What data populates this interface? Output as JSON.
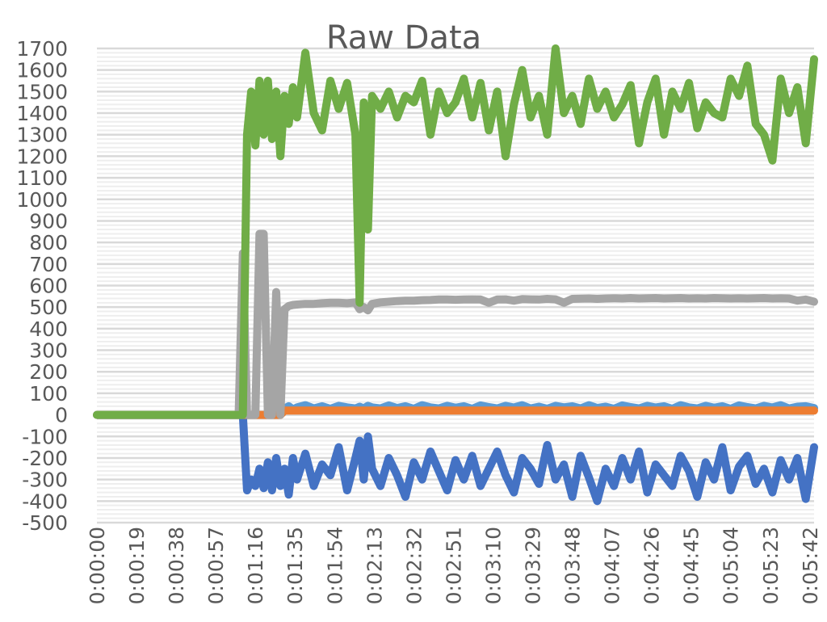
{
  "chart_data": {
    "type": "line",
    "title": "Raw Data",
    "xlabel": "",
    "ylabel": "",
    "ylim": [
      -500,
      1700
    ],
    "y_ticks": [
      "1700",
      "1600",
      "1500",
      "1400",
      "1300",
      "1200",
      "1100",
      "1000",
      "900",
      "800",
      "700",
      "600",
      "500",
      "400",
      "300",
      "200",
      "100",
      "0",
      "-100",
      "-200",
      "-300",
      "-400",
      "-500"
    ],
    "x_tick_labels": [
      "0:00:00",
      "0:00:19",
      "0:00:38",
      "0:00:57",
      "0:01:16",
      "0:01:35",
      "0:01:54",
      "0:02:13",
      "0:02:32",
      "0:02:51",
      "0:03:10",
      "0:03:29",
      "0:03:48",
      "0:04:07",
      "0:04:26",
      "0:04:45",
      "0:05:04",
      "0:05:23",
      "0:05:42"
    ],
    "x_tick_step_seconds": 19,
    "xlim_seconds": [
      0,
      344
    ],
    "grid": true,
    "legend": "none",
    "x_seconds": [
      0,
      4,
      8,
      12,
      16,
      20,
      24,
      28,
      32,
      36,
      40,
      44,
      48,
      52,
      56,
      60,
      64,
      68,
      70,
      72,
      74,
      76,
      78,
      80,
      82,
      84,
      86,
      88,
      90,
      92,
      94,
      96,
      100,
      104,
      108,
      112,
      116,
      120,
      124,
      126,
      128,
      130,
      132,
      136,
      140,
      144,
      148,
      152,
      156,
      160,
      164,
      168,
      172,
      176,
      180,
      184,
      188,
      192,
      196,
      200,
      204,
      208,
      212,
      216,
      220,
      224,
      228,
      232,
      236,
      240,
      244,
      248,
      252,
      256,
      260,
      264,
      268,
      272,
      276,
      280,
      284,
      288,
      292,
      296,
      300,
      304,
      308,
      312,
      316,
      320,
      324,
      328,
      332,
      336,
      340,
      344
    ],
    "series": [
      {
        "color": "#4472C4",
        "values": [
          0,
          0,
          0,
          0,
          0,
          0,
          0,
          0,
          0,
          0,
          0,
          0,
          0,
          0,
          0,
          0,
          0,
          0,
          0,
          -350,
          -300,
          -330,
          -250,
          -340,
          -220,
          -350,
          -200,
          -330,
          -250,
          -370,
          -200,
          -300,
          -180,
          -330,
          -230,
          -280,
          -150,
          -350,
          -200,
          -120,
          -300,
          -100,
          -250,
          -330,
          -200,
          -280,
          -380,
          -220,
          -300,
          -170,
          -260,
          -350,
          -210,
          -300,
          -190,
          -330,
          -250,
          -170,
          -280,
          -360,
          -200,
          -250,
          -320,
          -140,
          -300,
          -230,
          -380,
          -190,
          -290,
          -400,
          -250,
          -330,
          -200,
          -300,
          -170,
          -360,
          -230,
          -280,
          -330,
          -190,
          -260,
          -380,
          -220,
          -300,
          -150,
          -350,
          -240,
          -190,
          -320,
          -250,
          -360,
          -210,
          -300,
          -200,
          -390,
          -150
        ]
      },
      {
        "color": "#5B9BD5",
        "values": [
          0,
          0,
          0,
          0,
          0,
          0,
          0,
          0,
          0,
          0,
          0,
          0,
          0,
          0,
          0,
          0,
          0,
          0,
          0,
          0,
          0,
          0,
          0,
          0,
          0,
          0,
          0,
          0,
          30,
          40,
          25,
          35,
          45,
          30,
          40,
          28,
          42,
          35,
          30,
          38,
          30,
          42,
          35,
          30,
          44,
          32,
          40,
          28,
          45,
          35,
          30,
          42,
          33,
          40,
          28,
          44,
          36,
          30,
          42,
          34,
          45,
          30,
          38,
          28,
          42,
          35,
          40,
          30,
          45,
          32,
          38,
          28,
          44,
          36,
          30,
          42,
          34,
          40,
          28,
          45,
          35,
          30,
          42,
          33,
          40,
          28,
          44,
          36,
          30,
          42,
          34,
          45,
          30,
          38,
          40,
          32
        ]
      },
      {
        "color": "#ED7D31",
        "values": [
          0,
          0,
          0,
          0,
          0,
          0,
          0,
          0,
          0,
          0,
          0,
          0,
          0,
          0,
          0,
          0,
          0,
          0,
          0,
          0,
          0,
          0,
          0,
          0,
          0,
          0,
          0,
          0,
          20,
          20,
          20,
          20,
          20,
          20,
          20,
          20,
          20,
          20,
          20,
          20,
          20,
          20,
          20,
          20,
          20,
          20,
          20,
          20,
          20,
          20,
          20,
          20,
          20,
          20,
          20,
          20,
          20,
          20,
          20,
          20,
          20,
          20,
          20,
          20,
          20,
          20,
          20,
          20,
          20,
          20,
          20,
          20,
          20,
          20,
          20,
          20,
          20,
          20,
          20,
          20,
          20,
          20,
          20,
          20,
          20,
          20,
          20,
          20,
          20,
          20,
          20,
          20,
          20,
          20,
          20,
          20
        ]
      },
      {
        "color": "#A5A5A5",
        "values": [
          0,
          0,
          0,
          0,
          0,
          0,
          0,
          0,
          0,
          0,
          0,
          0,
          0,
          0,
          0,
          0,
          0,
          0,
          750,
          0,
          0,
          0,
          840,
          840,
          0,
          0,
          570,
          0,
          490,
          505,
          510,
          512,
          515,
          515,
          518,
          520,
          520,
          518,
          522,
          490,
          500,
          485,
          515,
          522,
          525,
          528,
          530,
          530,
          532,
          533,
          535,
          535,
          534,
          535,
          536,
          535,
          520,
          535,
          536,
          530,
          537,
          536,
          535,
          538,
          536,
          520,
          538,
          539,
          540,
          538,
          540,
          541,
          540,
          542,
          540,
          541,
          542,
          540,
          541,
          542,
          540,
          541,
          540,
          542,
          541,
          540,
          541,
          540,
          541,
          542,
          540,
          541,
          540,
          530,
          535,
          525
        ]
      },
      {
        "color": "#70AD47",
        "values": [
          0,
          0,
          0,
          0,
          0,
          0,
          0,
          0,
          0,
          0,
          0,
          0,
          0,
          0,
          0,
          0,
          0,
          0,
          0,
          1300,
          1500,
          1250,
          1550,
          1300,
          1550,
          1280,
          1500,
          1200,
          1480,
          1350,
          1520,
          1380,
          1680,
          1400,
          1320,
          1550,
          1420,
          1540,
          1300,
          520,
          1450,
          860,
          1480,
          1420,
          1500,
          1380,
          1480,
          1450,
          1550,
          1300,
          1500,
          1400,
          1450,
          1560,
          1380,
          1540,
          1320,
          1500,
          1200,
          1440,
          1600,
          1380,
          1480,
          1300,
          1700,
          1400,
          1480,
          1350,
          1560,
          1420,
          1500,
          1380,
          1440,
          1530,
          1260,
          1450,
          1560,
          1300,
          1500,
          1420,
          1540,
          1330,
          1450,
          1400,
          1380,
          1560,
          1480,
          1620,
          1350,
          1300,
          1180,
          1560,
          1400,
          1520,
          1260,
          1650
        ]
      }
    ]
  }
}
